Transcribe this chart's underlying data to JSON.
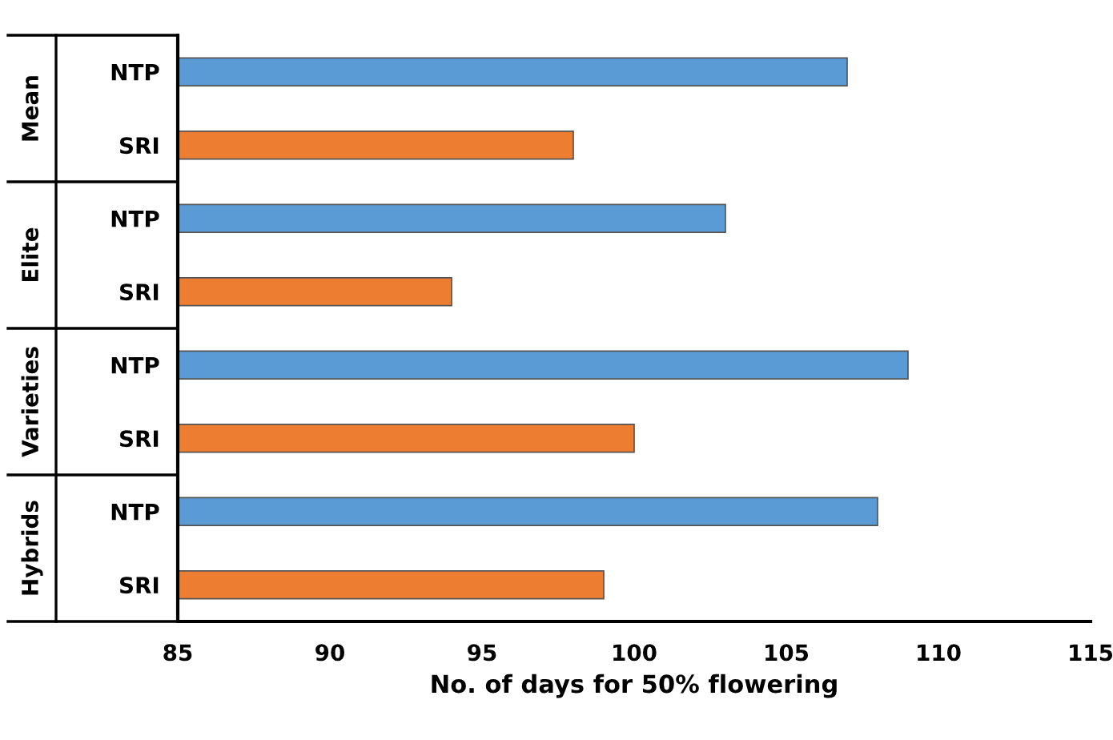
{
  "chart_data": {
    "type": "bar",
    "orientation": "horizontal",
    "xlabel": "No. of days for 50% flowering",
    "categories": [
      "NTP",
      "SRI",
      "NTP",
      "SRI",
      "NTP",
      "SRI",
      "NTP",
      "SRI"
    ],
    "values": [
      107,
      98,
      103,
      94,
      109,
      100,
      108,
      99
    ],
    "colors": [
      "#5b9bd5",
      "#ed7d31",
      "#5b9bd5",
      "#ed7d31",
      "#5b9bd5",
      "#ed7d31",
      "#5b9bd5",
      "#ed7d31"
    ],
    "xlim": [
      85,
      115
    ],
    "xticks": [
      85,
      90,
      95,
      100,
      105,
      110,
      115
    ],
    "annotations": [
      "Mean",
      "Elite",
      "Varieties",
      "Hybrids"
    ],
    "grid": false
  }
}
